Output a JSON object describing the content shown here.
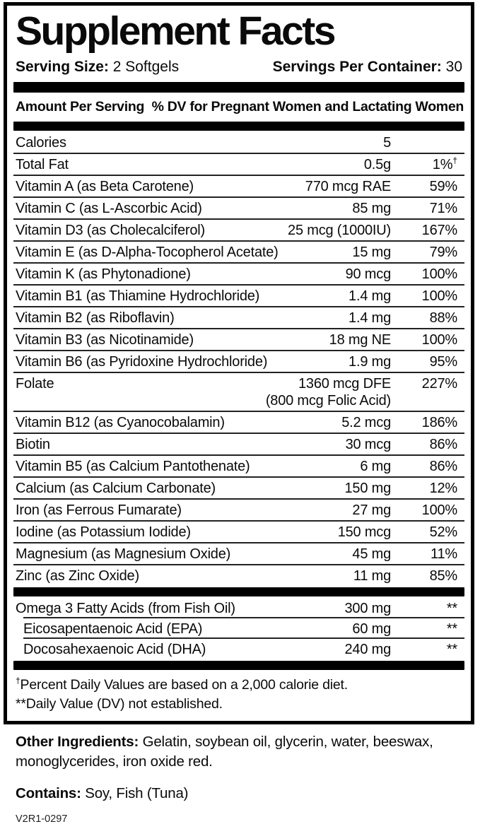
{
  "label": {
    "title": "Supplement Facts",
    "serving_size_label": "Serving Size:",
    "serving_size_value": "2 Softgels",
    "servings_per_container_label": "Servings Per Container:",
    "servings_per_container_value": "30",
    "column_header": {
      "amount_per_serving": "Amount Per Serving",
      "dv_header": "% DV for Pregnant Women and Lactating Women"
    },
    "table": {
      "sections": [
        {
          "id": "main",
          "rows": [
            {
              "name": "Calories",
              "amount": "5",
              "dv": ""
            },
            {
              "name": "Total Fat",
              "amount": "0.5g",
              "dv": "1%",
              "dv_sup": "†"
            },
            {
              "name": "Vitamin A (as Beta Carotene)",
              "amount": "770 mcg RAE",
              "dv": "59%"
            },
            {
              "name": "Vitamin C (as L-Ascorbic Acid)",
              "amount": "85 mg",
              "dv": "71%"
            },
            {
              "name": "Vitamin D3 (as Cholecalciferol)",
              "amount": "25 mcg (1000IU)",
              "dv": "167%"
            },
            {
              "name": "Vitamin E (as D-Alpha-Tocopherol Acetate)",
              "amount": "15 mg",
              "dv": "79%"
            },
            {
              "name": "Vitamin K (as Phytonadione)",
              "amount": "90 mcg",
              "dv": "100%"
            },
            {
              "name": "Vitamin B1 (as Thiamine Hydrochloride)",
              "amount": "1.4 mg",
              "dv": "100%"
            },
            {
              "name": "Vitamin B2 (as Riboflavin)",
              "amount": "1.4 mg",
              "dv": "88%"
            },
            {
              "name": "Vitamin B3 (as Nicotinamide)",
              "amount": "18 mg NE",
              "dv": "100%"
            },
            {
              "name": "Vitamin B6 (as Pyridoxine Hydrochloride)",
              "amount": "1.9 mg",
              "dv": "95%"
            },
            {
              "name": "Folate",
              "amount": "1360 mcg DFE",
              "amount2": "(800 mcg Folic Acid)",
              "dv": "227%"
            },
            {
              "name": "Vitamin B12 (as Cyanocobalamin)",
              "amount": "5.2 mcg",
              "dv": "186%"
            },
            {
              "name": "Biotin",
              "amount": "30 mcg",
              "dv": "86%"
            },
            {
              "name": "Vitamin B5 (as Calcium Pantothenate)",
              "amount": "6 mg",
              "dv": "86%"
            },
            {
              "name": "Calcium (as Calcium Carbonate)",
              "amount": "150 mg",
              "dv": "12%"
            },
            {
              "name": "Iron (as Ferrous Fumarate)",
              "amount": "27 mg",
              "dv": "100%"
            },
            {
              "name": "Iodine (as Potassium Iodide)",
              "amount": "150 mcg",
              "dv": "52%"
            },
            {
              "name": "Magnesium (as Magnesium Oxide)",
              "amount": "45 mg",
              "dv": "11%"
            },
            {
              "name": "Zinc (as Zinc Oxide)",
              "amount": "11 mg",
              "dv": "85%",
              "no_border": true
            }
          ]
        },
        {
          "id": "omega",
          "rows": [
            {
              "name": "Omega 3 Fatty Acids (from Fish Oil)",
              "amount": "300 mg",
              "dv": "**"
            },
            {
              "name": "Eicosapentaenoic Acid (EPA)",
              "amount": "60 mg",
              "dv": "**",
              "indent": true
            },
            {
              "name": "Docosahexaenoic Acid (DHA)",
              "amount": "240 mg",
              "dv": "**",
              "indent": true,
              "no_border": true
            }
          ]
        }
      ]
    },
    "footnotes": [
      {
        "sup": "†",
        "text": "Percent Daily Values are based on a 2,000 calorie diet."
      },
      {
        "sup": "",
        "text": "**Daily Value (DV) not established."
      }
    ]
  },
  "other_ingredients": {
    "label": "Other Ingredients:",
    "text": " Gelatin, soybean oil, glycerin, water, beeswax, monoglycerides, iron oxide red."
  },
  "contains": {
    "label": "Contains:",
    "text": " Soy, Fish (Tuna)"
  },
  "code": "V2R1-0297",
  "colors": {
    "text": "#0a0a0a",
    "rule": "#222222",
    "bar": "#000000",
    "background": "#ffffff"
  }
}
